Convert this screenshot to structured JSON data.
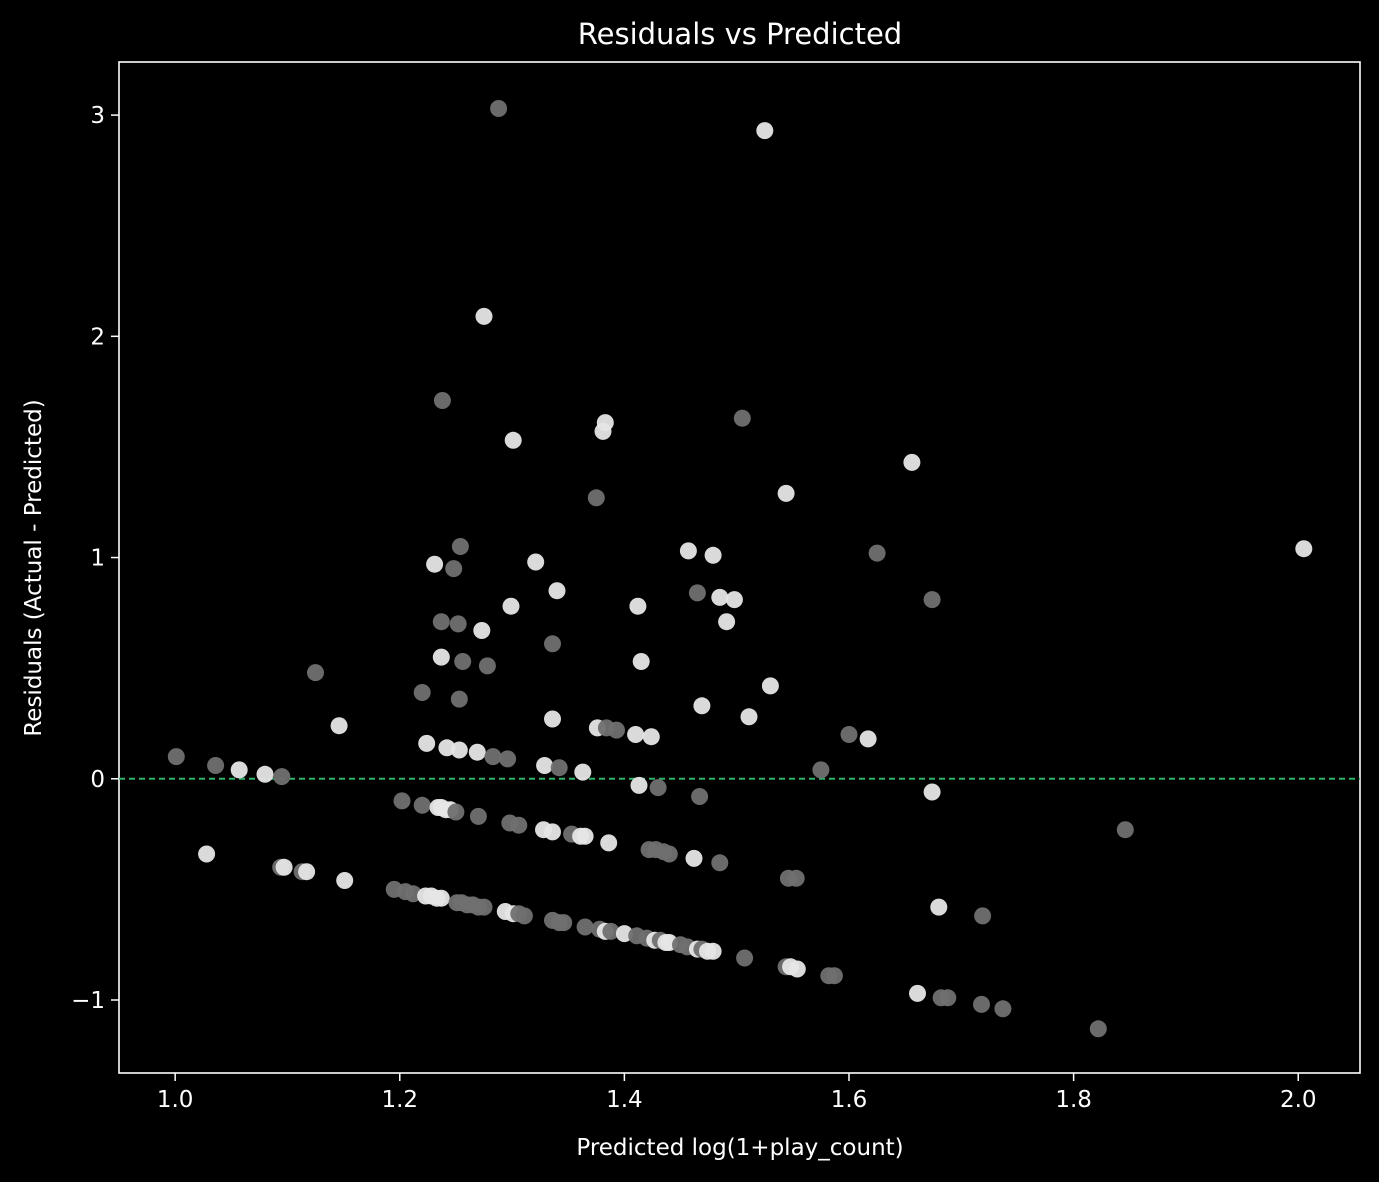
{
  "chart_data": {
    "type": "scatter",
    "title": "Residuals vs Predicted",
    "xlabel": "Predicted log(1+play_count)",
    "ylabel": "Residuals (Actual - Predicted)",
    "xlim": [
      0.95,
      2.055
    ],
    "ylim": [
      -1.33,
      3.24
    ],
    "xticks": [
      1.0,
      1.2,
      1.4,
      1.6,
      1.8,
      2.0
    ],
    "xtick_labels": [
      "1.0",
      "1.2",
      "1.4",
      "1.6",
      "1.8",
      "2.0"
    ],
    "yticks": [
      -1,
      0,
      1,
      2,
      3
    ],
    "ytick_labels": [
      "−1",
      "0",
      "1",
      "2",
      "3"
    ],
    "grid": false,
    "background": "#000000",
    "reference_line": {
      "y": 0,
      "style": "dashed",
      "color": "#2db36a"
    },
    "point_colors": {
      "light": "#e6e6e6",
      "dark": "#707070"
    },
    "points": [
      {
        "x": 1.288,
        "y": 3.03,
        "c": "dark"
      },
      {
        "x": 1.525,
        "y": 2.93,
        "c": "light"
      },
      {
        "x": 1.275,
        "y": 2.09,
        "c": "light"
      },
      {
        "x": 1.238,
        "y": 1.71,
        "c": "dark"
      },
      {
        "x": 1.383,
        "y": 1.61,
        "c": "light"
      },
      {
        "x": 1.381,
        "y": 1.57,
        "c": "light"
      },
      {
        "x": 1.505,
        "y": 1.63,
        "c": "dark"
      },
      {
        "x": 1.301,
        "y": 1.53,
        "c": "light"
      },
      {
        "x": 1.656,
        "y": 1.43,
        "c": "light"
      },
      {
        "x": 1.544,
        "y": 1.29,
        "c": "light"
      },
      {
        "x": 1.375,
        "y": 1.27,
        "c": "dark"
      },
      {
        "x": 1.254,
        "y": 1.05,
        "c": "dark"
      },
      {
        "x": 1.457,
        "y": 1.03,
        "c": "light"
      },
      {
        "x": 1.479,
        "y": 1.01,
        "c": "light"
      },
      {
        "x": 1.625,
        "y": 1.02,
        "c": "dark"
      },
      {
        "x": 2.005,
        "y": 1.04,
        "c": "light"
      },
      {
        "x": 1.321,
        "y": 0.98,
        "c": "light"
      },
      {
        "x": 1.231,
        "y": 0.97,
        "c": "light"
      },
      {
        "x": 1.248,
        "y": 0.95,
        "c": "dark"
      },
      {
        "x": 1.34,
        "y": 0.85,
        "c": "light"
      },
      {
        "x": 1.465,
        "y": 0.84,
        "c": "dark"
      },
      {
        "x": 1.485,
        "y": 0.82,
        "c": "light"
      },
      {
        "x": 1.498,
        "y": 0.81,
        "c": "light"
      },
      {
        "x": 1.674,
        "y": 0.81,
        "c": "dark"
      },
      {
        "x": 1.299,
        "y": 0.78,
        "c": "light"
      },
      {
        "x": 1.412,
        "y": 0.78,
        "c": "light"
      },
      {
        "x": 1.237,
        "y": 0.71,
        "c": "dark"
      },
      {
        "x": 1.252,
        "y": 0.7,
        "c": "dark"
      },
      {
        "x": 1.491,
        "y": 0.71,
        "c": "light"
      },
      {
        "x": 1.273,
        "y": 0.67,
        "c": "light"
      },
      {
        "x": 1.336,
        "y": 0.61,
        "c": "dark"
      },
      {
        "x": 1.237,
        "y": 0.55,
        "c": "light"
      },
      {
        "x": 1.256,
        "y": 0.53,
        "c": "dark"
      },
      {
        "x": 1.415,
        "y": 0.53,
        "c": "light"
      },
      {
        "x": 1.278,
        "y": 0.51,
        "c": "dark"
      },
      {
        "x": 1.125,
        "y": 0.48,
        "c": "dark"
      },
      {
        "x": 1.53,
        "y": 0.42,
        "c": "light"
      },
      {
        "x": 1.22,
        "y": 0.39,
        "c": "dark"
      },
      {
        "x": 1.253,
        "y": 0.36,
        "c": "dark"
      },
      {
        "x": 1.469,
        "y": 0.33,
        "c": "light"
      },
      {
        "x": 1.511,
        "y": 0.28,
        "c": "light"
      },
      {
        "x": 1.336,
        "y": 0.27,
        "c": "light"
      },
      {
        "x": 1.146,
        "y": 0.24,
        "c": "light"
      },
      {
        "x": 1.376,
        "y": 0.23,
        "c": "light"
      },
      {
        "x": 1.384,
        "y": 0.23,
        "c": "dark"
      },
      {
        "x": 1.393,
        "y": 0.22,
        "c": "dark"
      },
      {
        "x": 1.41,
        "y": 0.2,
        "c": "light"
      },
      {
        "x": 1.6,
        "y": 0.2,
        "c": "dark"
      },
      {
        "x": 1.617,
        "y": 0.18,
        "c": "light"
      },
      {
        "x": 1.424,
        "y": 0.19,
        "c": "light"
      },
      {
        "x": 1.224,
        "y": 0.16,
        "c": "light"
      },
      {
        "x": 1.242,
        "y": 0.14,
        "c": "light"
      },
      {
        "x": 1.253,
        "y": 0.13,
        "c": "light"
      },
      {
        "x": 1.269,
        "y": 0.12,
        "c": "light"
      },
      {
        "x": 1.283,
        "y": 0.1,
        "c": "dark"
      },
      {
        "x": 1.296,
        "y": 0.09,
        "c": "dark"
      },
      {
        "x": 1.001,
        "y": 0.1,
        "c": "dark"
      },
      {
        "x": 1.036,
        "y": 0.06,
        "c": "dark"
      },
      {
        "x": 1.057,
        "y": 0.04,
        "c": "light"
      },
      {
        "x": 1.08,
        "y": 0.02,
        "c": "light"
      },
      {
        "x": 1.095,
        "y": 0.01,
        "c": "dark"
      },
      {
        "x": 1.329,
        "y": 0.06,
        "c": "light"
      },
      {
        "x": 1.342,
        "y": 0.05,
        "c": "dark"
      },
      {
        "x": 1.363,
        "y": 0.03,
        "c": "light"
      },
      {
        "x": 1.575,
        "y": 0.04,
        "c": "dark"
      },
      {
        "x": 1.413,
        "y": -0.03,
        "c": "light"
      },
      {
        "x": 1.43,
        "y": -0.04,
        "c": "dark"
      },
      {
        "x": 1.467,
        "y": -0.08,
        "c": "dark"
      },
      {
        "x": 1.674,
        "y": -0.06,
        "c": "light"
      },
      {
        "x": 1.202,
        "y": -0.1,
        "c": "dark"
      },
      {
        "x": 1.22,
        "y": -0.12,
        "c": "dark"
      },
      {
        "x": 1.234,
        "y": -0.13,
        "c": "light"
      },
      {
        "x": 1.237,
        "y": -0.13,
        "c": "light"
      },
      {
        "x": 1.241,
        "y": -0.14,
        "c": "light"
      },
      {
        "x": 1.245,
        "y": -0.14,
        "c": "light"
      },
      {
        "x": 1.25,
        "y": -0.15,
        "c": "dark"
      },
      {
        "x": 1.27,
        "y": -0.17,
        "c": "dark"
      },
      {
        "x": 1.298,
        "y": -0.2,
        "c": "dark"
      },
      {
        "x": 1.306,
        "y": -0.21,
        "c": "dark"
      },
      {
        "x": 1.328,
        "y": -0.23,
        "c": "light"
      },
      {
        "x": 1.336,
        "y": -0.24,
        "c": "light"
      },
      {
        "x": 1.353,
        "y": -0.25,
        "c": "dark"
      },
      {
        "x": 1.361,
        "y": -0.26,
        "c": "light"
      },
      {
        "x": 1.365,
        "y": -0.26,
        "c": "light"
      },
      {
        "x": 1.386,
        "y": -0.29,
        "c": "light"
      },
      {
        "x": 1.422,
        "y": -0.32,
        "c": "dark"
      },
      {
        "x": 1.428,
        "y": -0.32,
        "c": "dark"
      },
      {
        "x": 1.435,
        "y": -0.33,
        "c": "dark"
      },
      {
        "x": 1.44,
        "y": -0.34,
        "c": "dark"
      },
      {
        "x": 1.462,
        "y": -0.36,
        "c": "light"
      },
      {
        "x": 1.485,
        "y": -0.38,
        "c": "dark"
      },
      {
        "x": 1.846,
        "y": -0.23,
        "c": "dark"
      },
      {
        "x": 1.028,
        "y": -0.34,
        "c": "light"
      },
      {
        "x": 1.094,
        "y": -0.4,
        "c": "dark"
      },
      {
        "x": 1.097,
        "y": -0.4,
        "c": "light"
      },
      {
        "x": 1.113,
        "y": -0.42,
        "c": "dark"
      },
      {
        "x": 1.117,
        "y": -0.42,
        "c": "light"
      },
      {
        "x": 1.151,
        "y": -0.46,
        "c": "light"
      },
      {
        "x": 1.546,
        "y": -0.45,
        "c": "dark"
      },
      {
        "x": 1.553,
        "y": -0.45,
        "c": "dark"
      },
      {
        "x": 1.195,
        "y": -0.5,
        "c": "dark"
      },
      {
        "x": 1.205,
        "y": -0.51,
        "c": "dark"
      },
      {
        "x": 1.212,
        "y": -0.52,
        "c": "dark"
      },
      {
        "x": 1.223,
        "y": -0.53,
        "c": "light"
      },
      {
        "x": 1.228,
        "y": -0.53,
        "c": "light"
      },
      {
        "x": 1.233,
        "y": -0.54,
        "c": "light"
      },
      {
        "x": 1.237,
        "y": -0.54,
        "c": "light"
      },
      {
        "x": 1.251,
        "y": -0.56,
        "c": "dark"
      },
      {
        "x": 1.255,
        "y": -0.56,
        "c": "dark"
      },
      {
        "x": 1.26,
        "y": -0.57,
        "c": "dark"
      },
      {
        "x": 1.265,
        "y": -0.57,
        "c": "dark"
      },
      {
        "x": 1.27,
        "y": -0.58,
        "c": "dark"
      },
      {
        "x": 1.275,
        "y": -0.58,
        "c": "dark"
      },
      {
        "x": 1.294,
        "y": -0.6,
        "c": "light"
      },
      {
        "x": 1.301,
        "y": -0.61,
        "c": "light"
      },
      {
        "x": 1.306,
        "y": -0.61,
        "c": "dark"
      },
      {
        "x": 1.311,
        "y": -0.62,
        "c": "dark"
      },
      {
        "x": 1.336,
        "y": -0.64,
        "c": "dark"
      },
      {
        "x": 1.342,
        "y": -0.65,
        "c": "dark"
      },
      {
        "x": 1.346,
        "y": -0.65,
        "c": "dark"
      },
      {
        "x": 1.365,
        "y": -0.67,
        "c": "dark"
      },
      {
        "x": 1.378,
        "y": -0.68,
        "c": "dark"
      },
      {
        "x": 1.383,
        "y": -0.69,
        "c": "light"
      },
      {
        "x": 1.388,
        "y": -0.69,
        "c": "dark"
      },
      {
        "x": 1.4,
        "y": -0.7,
        "c": "light"
      },
      {
        "x": 1.411,
        "y": -0.71,
        "c": "dark"
      },
      {
        "x": 1.42,
        "y": -0.72,
        "c": "dark"
      },
      {
        "x": 1.427,
        "y": -0.73,
        "c": "light"
      },
      {
        "x": 1.432,
        "y": -0.73,
        "c": "dark"
      },
      {
        "x": 1.437,
        "y": -0.74,
        "c": "light"
      },
      {
        "x": 1.44,
        "y": -0.74,
        "c": "light"
      },
      {
        "x": 1.45,
        "y": -0.75,
        "c": "dark"
      },
      {
        "x": 1.456,
        "y": -0.76,
        "c": "dark"
      },
      {
        "x": 1.465,
        "y": -0.77,
        "c": "light"
      },
      {
        "x": 1.469,
        "y": -0.77,
        "c": "dark"
      },
      {
        "x": 1.474,
        "y": -0.78,
        "c": "light"
      },
      {
        "x": 1.479,
        "y": -0.78,
        "c": "light"
      },
      {
        "x": 1.507,
        "y": -0.81,
        "c": "dark"
      },
      {
        "x": 1.544,
        "y": -0.85,
        "c": "dark"
      },
      {
        "x": 1.548,
        "y": -0.85,
        "c": "light"
      },
      {
        "x": 1.554,
        "y": -0.86,
        "c": "light"
      },
      {
        "x": 1.582,
        "y": -0.89,
        "c": "dark"
      },
      {
        "x": 1.587,
        "y": -0.89,
        "c": "dark"
      },
      {
        "x": 1.68,
        "y": -0.58,
        "c": "light"
      },
      {
        "x": 1.719,
        "y": -0.62,
        "c": "dark"
      },
      {
        "x": 1.661,
        "y": -0.97,
        "c": "light"
      },
      {
        "x": 1.682,
        "y": -0.99,
        "c": "dark"
      },
      {
        "x": 1.688,
        "y": -0.99,
        "c": "dark"
      },
      {
        "x": 1.718,
        "y": -1.02,
        "c": "dark"
      },
      {
        "x": 1.737,
        "y": -1.04,
        "c": "dark"
      },
      {
        "x": 1.822,
        "y": -1.13,
        "c": "dark"
      }
    ]
  }
}
